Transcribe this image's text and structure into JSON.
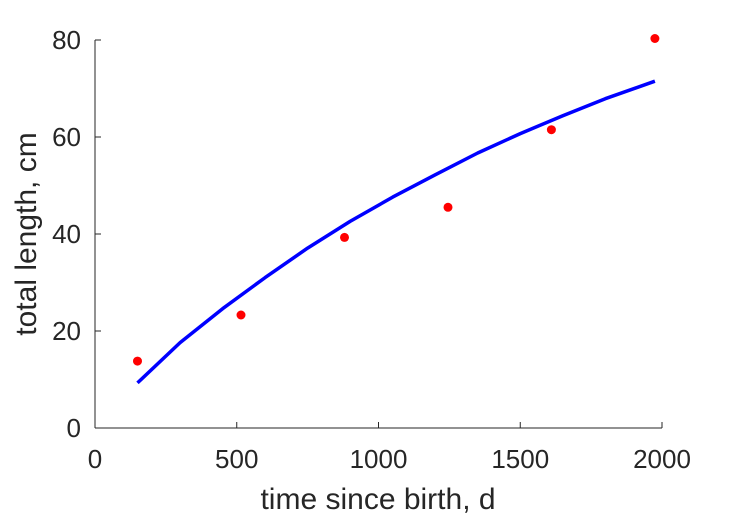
{
  "chart_data": {
    "type": "scatter",
    "title": "",
    "xlabel": "time since birth, d",
    "ylabel": "total length, cm",
    "xlim": [
      0,
      2000
    ],
    "ylim": [
      0,
      80
    ],
    "xticks": [
      0,
      500,
      1000,
      1500,
      2000
    ],
    "yticks": [
      0,
      20,
      40,
      60,
      80
    ],
    "grid": false,
    "legend": "none",
    "series": [
      {
        "kind": "scatter",
        "color": "#ff0000",
        "x": [
          150,
          515,
          880,
          1245,
          1610,
          1975
        ],
        "y": [
          13.8,
          23.3,
          39.3,
          45.5,
          61.5,
          80.3
        ]
      },
      {
        "kind": "line",
        "color": "#0000ff",
        "x": [
          150,
          300,
          450,
          600,
          750,
          900,
          1050,
          1200,
          1350,
          1500,
          1650,
          1800,
          1975
        ],
        "y": [
          9.3,
          17.6,
          24.6,
          31.0,
          37.1,
          42.6,
          47.6,
          52.2,
          56.7,
          60.7,
          64.4,
          67.9,
          71.5
        ]
      }
    ]
  }
}
